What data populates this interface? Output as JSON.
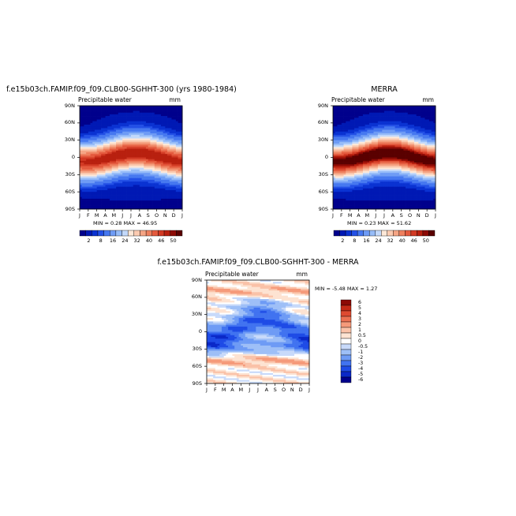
{
  "chart_data": [
    {
      "type": "heatmap",
      "title": "f.e15b03ch.FAMIP.f09_f09.CLB00-SGHHT-300 (yrs 1980-1984)",
      "subtitle": "Precipitable water",
      "units": "mm",
      "x_ticks": [
        "J",
        "F",
        "M",
        "A",
        "M",
        "J",
        "J",
        "A",
        "S",
        "O",
        "N",
        "D",
        "J"
      ],
      "y_ticks": [
        "90N",
        "60N",
        "30N",
        "0",
        "30S",
        "60S",
        "90S"
      ],
      "ylim": [
        -90,
        90
      ],
      "stats": "MIN =   0.28 MAX =   46.95",
      "colorbar": {
        "levels": [
          2,
          4,
          6,
          8,
          12,
          16,
          20,
          24,
          28,
          32,
          36,
          40,
          44,
          46,
          48,
          50
        ],
        "labels": [
          "2",
          "8",
          "16",
          "24",
          "32",
          "40",
          "46",
          "50"
        ],
        "orientation": "horizontal"
      },
      "field": {
        "min": 0.28,
        "max": 46.95,
        "eq_peak": 46.95,
        "itcz_seasonal_shift_deg": 8
      }
    },
    {
      "type": "heatmap",
      "title": "MERRA",
      "subtitle": "Precipitable water",
      "units": "mm",
      "x_ticks": [
        "J",
        "F",
        "M",
        "A",
        "M",
        "J",
        "J",
        "A",
        "S",
        "O",
        "N",
        "D",
        "J"
      ],
      "y_ticks": [
        "90N",
        "60N",
        "30N",
        "0",
        "30S",
        "60S",
        "90S"
      ],
      "ylim": [
        -90,
        90
      ],
      "stats": "MIN =   0.23 MAX =   51.62",
      "colorbar": {
        "levels": [
          2,
          4,
          6,
          8,
          12,
          16,
          20,
          24,
          28,
          32,
          36,
          40,
          44,
          46,
          48,
          50
        ],
        "labels": [
          "2",
          "8",
          "16",
          "24",
          "32",
          "40",
          "46",
          "50"
        ],
        "orientation": "horizontal"
      },
      "field": {
        "min": 0.23,
        "max": 51.62,
        "eq_peak": 51.62,
        "itcz_seasonal_shift_deg": 8
      }
    },
    {
      "type": "heatmap",
      "title": "f.e15b03ch.FAMIP.f09_f09.CLB00-SGHHT-300 - MERRA",
      "subtitle": "Precipitable water",
      "units": "mm",
      "x_ticks": [
        "J",
        "F",
        "M",
        "A",
        "M",
        "J",
        "J",
        "A",
        "S",
        "O",
        "N",
        "D",
        "J"
      ],
      "y_ticks": [
        "90N",
        "60N",
        "30N",
        "0",
        "30S",
        "60S",
        "90S"
      ],
      "ylim": [
        -90,
        90
      ],
      "stats": "MIN =   -5.48 MAX =    1.27",
      "colorbar": {
        "levels": [
          -6,
          -5,
          -4,
          -3,
          -2,
          -1,
          -0.5,
          0,
          0.5,
          1,
          2,
          3,
          4,
          5,
          6
        ],
        "labels": [
          "6",
          "5",
          "4",
          "3",
          "2",
          "1",
          "0.5",
          "0",
          "-0.5",
          "-1",
          "-2",
          "-3",
          "-4",
          "-5",
          "-6"
        ],
        "orientation": "vertical"
      },
      "field": {
        "min": -5.48,
        "max": 1.27
      }
    }
  ],
  "colors": {
    "seq": [
      "#00008c",
      "#0019b4",
      "#0a32d2",
      "#2350e6",
      "#4678f0",
      "#6e9bf5",
      "#96bcf8",
      "#c3d9fb",
      "#fde8d8",
      "#fbcbb1",
      "#f5a585",
      "#ee805f",
      "#e45a3e",
      "#d23a24",
      "#b8200f",
      "#8c0a05",
      "#5a0000"
    ],
    "div": [
      "#00008c",
      "#0a28c8",
      "#1e4be6",
      "#4173f0",
      "#6e9bf5",
      "#9ebff7",
      "#c8dafa",
      "#ffffff",
      "#fde3d2",
      "#fac2a8",
      "#f59a7a",
      "#ec7152",
      "#de4a30",
      "#c42a16",
      "#8c0a05"
    ]
  }
}
